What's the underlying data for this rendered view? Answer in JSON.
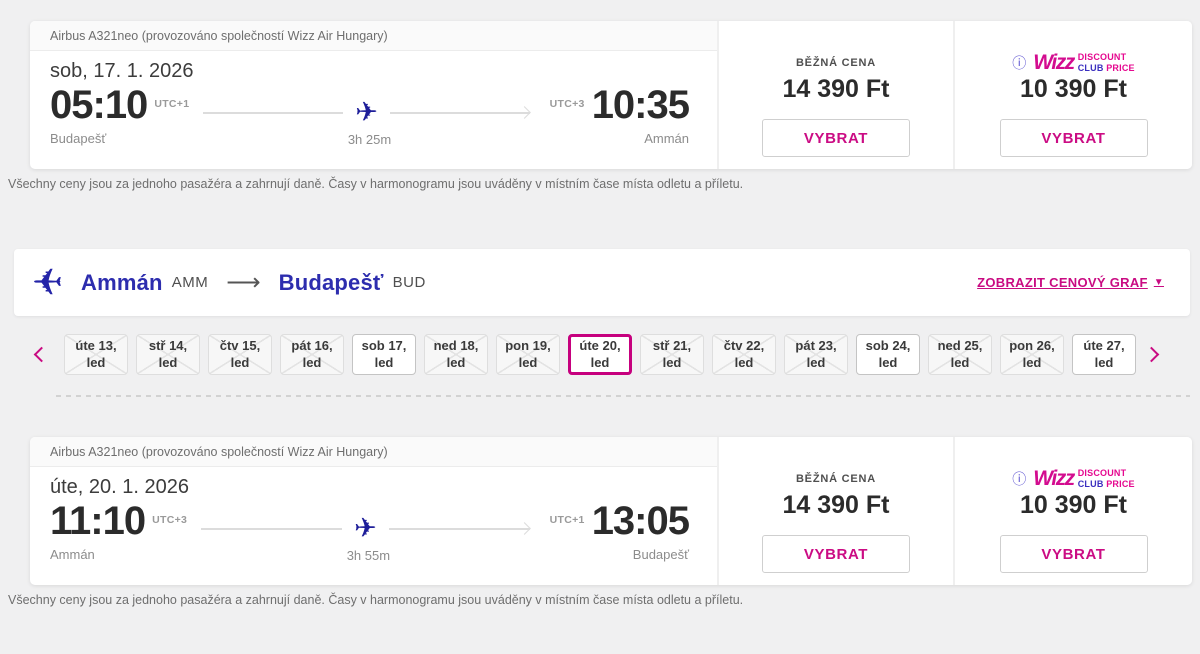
{
  "colors": {
    "magenta": "#c90b82",
    "indigo": "#2d2dae",
    "navy": "#1d1d99",
    "page_bg": "#f0f0f1"
  },
  "disclaimer": "Všechny ceny jsou za jednoho pasažéra a zahrnují daně. Časy v harmonogramu jsou uváděny v místním čase místa odletu a příletu.",
  "outbound": {
    "aircraft_info": "Airbus A321neo (provozováno společností Wizz Air Hungary)",
    "date": "sob, 17. 1. 2026",
    "departure": {
      "time": "05:10",
      "timezone": "UTC+1",
      "city": "Budapešť"
    },
    "arrival": {
      "time": "10:35",
      "timezone": "UTC+3",
      "city": "Ammán"
    },
    "duration": "3h 25m",
    "regular_price": {
      "label": "BĚŽNÁ CENA",
      "amount": "14 390 Ft",
      "select_label": "VYBRAT"
    },
    "club_price": {
      "info_icon": "ⓘ",
      "brand": "Wizz",
      "badge_line1": "DISCOUNT",
      "badge_line2a": "CLUB",
      "badge_line2b": " PRICE",
      "amount": "10 390 Ft",
      "select_label": "VYBRAT"
    }
  },
  "inbound": {
    "aircraft_info": "Airbus A321neo (provozováno společností Wizz Air Hungary)",
    "date": "úte, 20. 1. 2026",
    "departure": {
      "time": "11:10",
      "timezone": "UTC+3",
      "city": "Ammán"
    },
    "arrival": {
      "time": "13:05",
      "timezone": "UTC+1",
      "city": "Budapešť"
    },
    "duration": "3h 55m",
    "regular_price": {
      "label": "BĚŽNÁ CENA",
      "amount": "14 390 Ft",
      "select_label": "VYBRAT"
    },
    "club_price": {
      "info_icon": "ⓘ",
      "brand": "Wizz",
      "badge_line1": "DISCOUNT",
      "badge_line2a": "CLUB",
      "badge_line2b": " PRICE",
      "amount": "10 390 Ft",
      "select_label": "VYBRAT"
    }
  },
  "route_bar": {
    "from_city": "Ammán",
    "from_code": "AMM",
    "arrow": "⟶",
    "to_city": "Budapešť",
    "to_code": "BUD",
    "price_graph_link": "ZOBRAZIT CENOVÝ GRAF",
    "caret": "▼"
  },
  "date_picker": {
    "days": [
      {
        "day": "úte 13,",
        "month": "led",
        "state": "unavailable"
      },
      {
        "day": "stř 14,",
        "month": "led",
        "state": "unavailable"
      },
      {
        "day": "čtv 15,",
        "month": "led",
        "state": "unavailable"
      },
      {
        "day": "pát 16,",
        "month": "led",
        "state": "unavailable"
      },
      {
        "day": "sob 17,",
        "month": "led",
        "state": "available"
      },
      {
        "day": "ned 18,",
        "month": "led",
        "state": "unavailable"
      },
      {
        "day": "pon 19,",
        "month": "led",
        "state": "unavailable"
      },
      {
        "day": "úte 20,",
        "month": "led",
        "state": "selected"
      },
      {
        "day": "stř 21,",
        "month": "led",
        "state": "unavailable"
      },
      {
        "day": "čtv 22,",
        "month": "led",
        "state": "unavailable"
      },
      {
        "day": "pát 23,",
        "month": "led",
        "state": "unavailable"
      },
      {
        "day": "sob 24,",
        "month": "led",
        "state": "available"
      },
      {
        "day": "ned 25,",
        "month": "led",
        "state": "unavailable"
      },
      {
        "day": "pon 26,",
        "month": "led",
        "state": "unavailable"
      },
      {
        "day": "úte 27,",
        "month": "led",
        "state": "available"
      }
    ]
  }
}
